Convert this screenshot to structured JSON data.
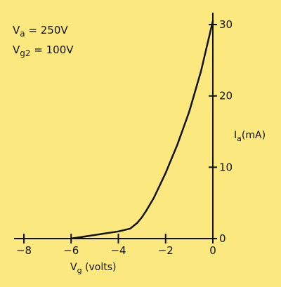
{
  "chart_data": {
    "type": "line",
    "annotations": [
      {
        "symbol": "V",
        "sub": "a",
        "rest": " = 250V"
      },
      {
        "symbol": "V",
        "sub": "g2",
        "rest": " = 100V"
      }
    ],
    "xlabel": {
      "symbol": "V",
      "sub": "g",
      "rest": " (volts)"
    },
    "ylabel": {
      "symbol": "I",
      "sub": "a",
      "rest": "(mA)"
    },
    "xlim": [
      -8,
      0
    ],
    "ylim": [
      0,
      30
    ],
    "xticks": [
      {
        "value": -8,
        "label": "−8"
      },
      {
        "value": -6,
        "label": "−6"
      },
      {
        "value": -4,
        "label": "−4"
      },
      {
        "value": -2,
        "label": "−2"
      },
      {
        "value": 0,
        "label": "0"
      }
    ],
    "yticks": [
      {
        "value": 0,
        "label": "0"
      },
      {
        "value": 10,
        "label": "10"
      },
      {
        "value": 20,
        "label": "20"
      },
      {
        "value": 30,
        "label": "30"
      }
    ],
    "y_axis_position": "right",
    "grid": false,
    "colors": {
      "background": "#fbe97f",
      "ink": "#111111"
    },
    "series": [
      {
        "x": [
          -6.0,
          -5.0,
          -4.0,
          -3.5,
          -3.2,
          -3.0,
          -2.8,
          -2.5,
          -2.0,
          -1.5,
          -1.0,
          -0.5,
          0.0
        ],
        "y": [
          0.0,
          0.5,
          1.0,
          1.4,
          2.2,
          3.0,
          4.0,
          5.7,
          9.2,
          13.2,
          17.8,
          23.5,
          30.5
        ]
      }
    ]
  }
}
